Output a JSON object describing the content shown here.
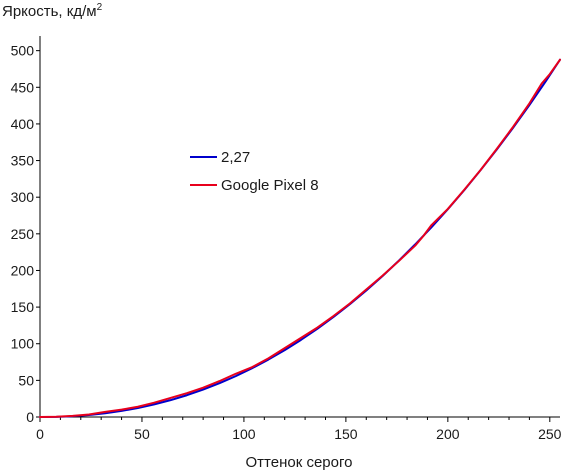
{
  "chart_data": {
    "type": "line",
    "ylabel": "Яркость, кд/м",
    "ylabel_superscript": "2",
    "xlabel": "Оттенок серого",
    "xlim": [
      0,
      255
    ],
    "ylim": [
      0,
      520
    ],
    "x_ticks": [
      0,
      50,
      100,
      150,
      200,
      250
    ],
    "y_ticks": [
      0,
      50,
      100,
      150,
      200,
      250,
      300,
      350,
      400,
      450,
      500
    ],
    "grid": false,
    "legend_position": "center-left",
    "series": [
      {
        "name": "2,27",
        "color": "#0000cc",
        "x": [
          0,
          8,
          16,
          24,
          32,
          40,
          48,
          56,
          64,
          72,
          80,
          88,
          96,
          104,
          112,
          120,
          128,
          136,
          144,
          152,
          160,
          168,
          176,
          184,
          192,
          200,
          208,
          216,
          224,
          232,
          240,
          248,
          255
        ],
        "y": [
          0,
          0.2,
          1.1,
          2.7,
          5.1,
          8.3,
          12.3,
          17.2,
          23.0,
          29.7,
          37.4,
          46.1,
          55.8,
          66.6,
          78.4,
          91.3,
          105.3,
          120.4,
          136.7,
          154.1,
          172.7,
          192.5,
          213.4,
          235.6,
          259.0,
          283.6,
          309.5,
          336.7,
          365.1,
          394.8,
          425.8,
          458.1,
          487.6
        ]
      },
      {
        "name": "Google Pixel 8",
        "color": "#e8001c",
        "x": [
          0,
          8,
          16,
          24,
          32,
          40,
          48,
          56,
          64,
          72,
          80,
          88,
          96,
          104,
          112,
          120,
          128,
          136,
          144,
          152,
          160,
          168,
          176,
          184,
          188,
          192,
          200,
          208,
          216,
          224,
          232,
          240,
          246,
          250,
          255
        ],
        "y": [
          0,
          0.3,
          1.5,
          3.4,
          7.0,
          10.0,
          14.0,
          19.5,
          26.0,
          32.5,
          40.0,
          49.0,
          59.0,
          68.0,
          80.0,
          94.0,
          108.0,
          122.0,
          138.0,
          155.0,
          174.0,
          193.0,
          213.0,
          234.0,
          247.0,
          262.0,
          284.0,
          310.0,
          337.0,
          366.0,
          396.0,
          428.0,
          455.0,
          468.0,
          487.6
        ]
      }
    ]
  }
}
